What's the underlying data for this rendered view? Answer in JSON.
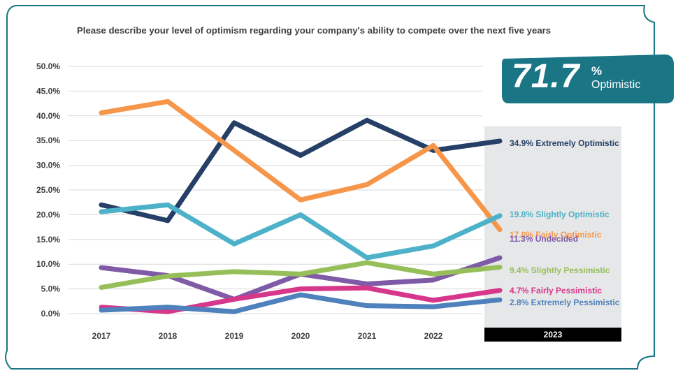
{
  "title": "Please describe your level of optimism regarding your company's ability to compete over the next five years",
  "badge": {
    "value": "71.7",
    "percent_sign": "%",
    "label": "Optimistic"
  },
  "colors": {
    "frame": "#1a7585",
    "highlight_bg": "#e6e7e8",
    "highlight_bar": "#000000",
    "grid": "#d9d9d9",
    "axis_text": "#404040"
  },
  "chart_data": {
    "type": "line",
    "title": "Please describe your level of optimism regarding your company's ability to compete over the next five years",
    "categories": [
      "2017",
      "2018",
      "2019",
      "2020",
      "2021",
      "2022",
      "2023"
    ],
    "highlight_category": "2023",
    "ylim": [
      0,
      50
    ],
    "yticks": [
      "0.0%",
      "5.0%",
      "10.0%",
      "15.0%",
      "20.0%",
      "25.0%",
      "30.0%",
      "35.0%",
      "40.0%",
      "45.0%",
      "50.0%"
    ],
    "series": [
      {
        "name": "Extremely Optimistic",
        "label": "34.9% Extremely Optimistic",
        "color": "#253f66",
        "values": [
          22.0,
          18.8,
          38.6,
          32.0,
          39.1,
          33.0,
          34.9
        ]
      },
      {
        "name": "Fairly Optimistic",
        "label": "17.0% Fairly Optimistic",
        "color": "#f5964a",
        "values": [
          40.6,
          42.9,
          33.0,
          23.0,
          26.1,
          34.0,
          17.0
        ]
      },
      {
        "name": "Slightly Optimistic",
        "label": "19.8% Slightly Optimistic",
        "color": "#4db2c9",
        "values": [
          20.6,
          22.0,
          14.1,
          20.0,
          11.3,
          13.7,
          19.8
        ]
      },
      {
        "name": "Undecided",
        "label": "11.3% Undecided",
        "color": "#7f5aa6",
        "values": [
          9.3,
          7.7,
          2.9,
          8.0,
          6.0,
          6.8,
          11.3
        ]
      },
      {
        "name": "Slightly Pessimistic",
        "label": "9.4% Slightly Pessimistic",
        "color": "#96bf59",
        "values": [
          5.3,
          7.6,
          8.5,
          8.0,
          10.3,
          8.0,
          9.4
        ]
      },
      {
        "name": "Fairly Pessimistic",
        "label": "4.7% Fairly Pessimistic",
        "color": "#d6378b",
        "values": [
          1.3,
          0.4,
          2.9,
          5.0,
          5.2,
          2.7,
          4.7
        ]
      },
      {
        "name": "Extremely Pessimistic",
        "label": "2.8% Extremely Pessimistic",
        "color": "#4f81bd",
        "values": [
          0.7,
          1.3,
          0.4,
          3.8,
          1.6,
          1.4,
          2.8
        ]
      }
    ]
  }
}
